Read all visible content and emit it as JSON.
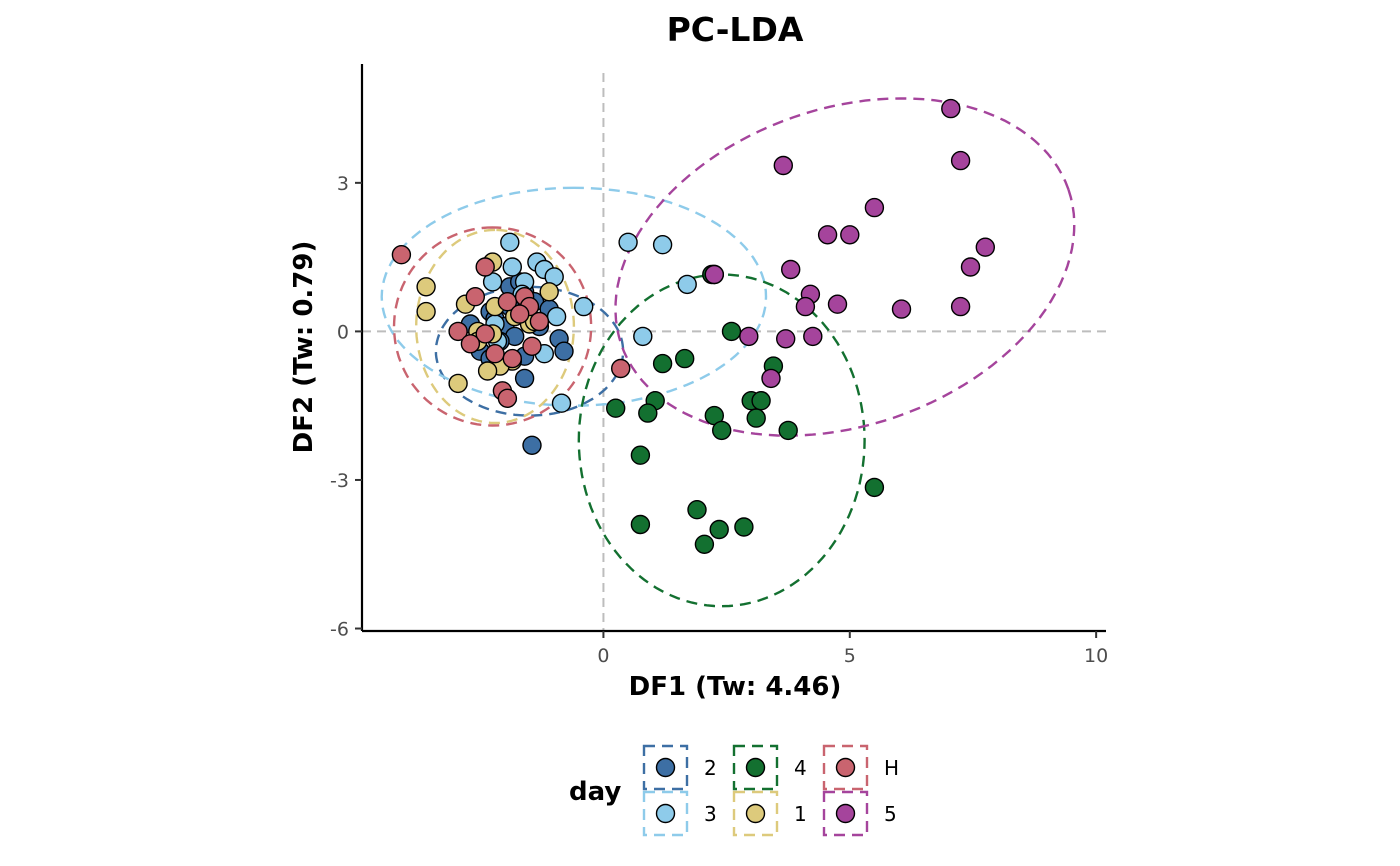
{
  "chart_data": {
    "type": "scatter",
    "title": "PC-LDA",
    "xlabel": "DF1 (Tw: 4.46)",
    "ylabel": "DF2 (Tw: 0.79)",
    "xlim": [
      -4.9,
      10.2
    ],
    "ylim": [
      -6.05,
      5.4
    ],
    "xticks": [
      0,
      5,
      10
    ],
    "xtick_labels": [
      "0",
      "5",
      "10"
    ],
    "yticks": [
      -6,
      -3,
      0,
      3
    ],
    "ytick_labels": [
      "-6",
      "-3",
      "0",
      "3"
    ],
    "reference_lines": {
      "x": 0,
      "y": 0,
      "style": "dashed",
      "color": "#bdbdbd"
    },
    "grid": false,
    "legend": {
      "title": "day",
      "position": "bottom"
    },
    "series": [
      {
        "name": "2",
        "color": "#3d6fa4",
        "ellipse": {
          "cx": -1.5,
          "cy": -0.4,
          "rx": 1.3,
          "ry": 1.9,
          "angle": 90
        },
        "points": [
          [
            -1.9,
            0.9
          ],
          [
            -1.6,
            0.8
          ],
          [
            -1.4,
            0.6
          ],
          [
            -1.9,
            0.5
          ],
          [
            -2.3,
            0.4
          ],
          [
            -2.2,
            0.25
          ],
          [
            -2.7,
            0.15
          ],
          [
            -1.3,
            0.1
          ],
          [
            -2.0,
            0.1
          ],
          [
            -1.8,
            -0.1
          ],
          [
            -2.1,
            -0.2
          ],
          [
            -2.5,
            -0.4
          ],
          [
            -1.6,
            -0.5
          ],
          [
            -1.1,
            0.45
          ],
          [
            -0.9,
            -0.15
          ],
          [
            -0.8,
            -0.4
          ],
          [
            -1.6,
            -0.95
          ],
          [
            -1.45,
            -2.3
          ],
          [
            -1.7,
            1.0
          ],
          [
            -2.3,
            -0.55
          ]
        ]
      },
      {
        "name": "3",
        "color": "#8ecbea",
        "ellipse": {
          "cx": -0.6,
          "cy": 0.7,
          "rx": 2.2,
          "ry": 3.9,
          "angle": 90
        },
        "points": [
          [
            -1.9,
            1.8
          ],
          [
            -1.35,
            1.4
          ],
          [
            -1.2,
            1.25
          ],
          [
            -1.0,
            1.1
          ],
          [
            -1.85,
            1.3
          ],
          [
            -2.25,
            1.0
          ],
          [
            -1.6,
            1.0
          ],
          [
            -1.65,
            0.75
          ],
          [
            -0.4,
            0.5
          ],
          [
            -0.95,
            0.3
          ],
          [
            -2.15,
            -0.2
          ],
          [
            -1.2,
            -0.45
          ],
          [
            -0.85,
            -1.45
          ],
          [
            0.5,
            1.8
          ],
          [
            1.2,
            1.75
          ],
          [
            1.7,
            0.95
          ],
          [
            0.8,
            -0.1
          ],
          [
            -2.2,
            0.15
          ]
        ]
      },
      {
        "name": "4",
        "color": "#137030",
        "ellipse": {
          "cx": 2.4,
          "cy": -2.2,
          "rx": 3.35,
          "ry": 2.9,
          "angle": 90
        },
        "points": [
          [
            2.6,
            0.0
          ],
          [
            1.65,
            -0.55
          ],
          [
            1.2,
            -0.65
          ],
          [
            3.45,
            -0.7
          ],
          [
            1.05,
            -1.4
          ],
          [
            0.9,
            -1.65
          ],
          [
            0.25,
            -1.55
          ],
          [
            2.25,
            -1.7
          ],
          [
            2.4,
            -2.0
          ],
          [
            3.0,
            -1.4
          ],
          [
            3.2,
            -1.4
          ],
          [
            3.1,
            -1.75
          ],
          [
            3.75,
            -2.0
          ],
          [
            0.75,
            -2.5
          ],
          [
            1.9,
            -3.6
          ],
          [
            0.75,
            -3.9
          ],
          [
            2.35,
            -4.0
          ],
          [
            2.85,
            -3.95
          ],
          [
            2.05,
            -4.3
          ],
          [
            5.5,
            -3.15
          ],
          [
            2.2,
            1.15
          ]
        ]
      },
      {
        "name": "1",
        "color": "#ddca7c",
        "ellipse": {
          "cx": -2.2,
          "cy": 0.1,
          "rx": 1.95,
          "ry": 1.6,
          "angle": 90
        },
        "points": [
          [
            -3.6,
            0.9
          ],
          [
            -3.6,
            0.4
          ],
          [
            -2.8,
            0.55
          ],
          [
            -2.25,
            1.4
          ],
          [
            -1.1,
            0.8
          ],
          [
            -2.2,
            0.5
          ],
          [
            -1.8,
            0.3
          ],
          [
            -1.5,
            0.15
          ],
          [
            -2.55,
            0.0
          ],
          [
            -2.25,
            -0.05
          ],
          [
            -2.55,
            -0.2
          ],
          [
            -1.85,
            -0.6
          ],
          [
            -2.1,
            -0.7
          ],
          [
            -2.35,
            -0.8
          ],
          [
            -2.95,
            -1.05
          ],
          [
            -1.4,
            0.2
          ]
        ]
      },
      {
        "name": "H",
        "color": "#c9646f",
        "ellipse": {
          "cx": -2.25,
          "cy": 0.1,
          "rx": 2.0,
          "ry": 2.0,
          "angle": 90
        },
        "points": [
          [
            -4.1,
            1.55
          ],
          [
            -2.4,
            1.3
          ],
          [
            -2.6,
            0.7
          ],
          [
            -1.95,
            0.6
          ],
          [
            -1.6,
            0.7
          ],
          [
            -1.5,
            0.5
          ],
          [
            -1.7,
            0.35
          ],
          [
            -1.3,
            0.2
          ],
          [
            -2.4,
            -0.05
          ],
          [
            -2.95,
            0.0
          ],
          [
            -2.7,
            -0.25
          ],
          [
            -2.2,
            -0.45
          ],
          [
            -1.85,
            -0.55
          ],
          [
            -1.45,
            -0.3
          ],
          [
            -2.05,
            -1.2
          ],
          [
            -1.95,
            -1.35
          ],
          [
            0.35,
            -0.75
          ],
          [
            2.25,
            1.15
          ]
        ]
      },
      {
        "name": "5",
        "color": "#a5449c",
        "ellipse": {
          "cx": 4.9,
          "cy": 1.3,
          "rx": 4.8,
          "ry": 3.2,
          "angle": 19
        },
        "points": [
          [
            7.05,
            4.5
          ],
          [
            7.25,
            3.45
          ],
          [
            3.65,
            3.35
          ],
          [
            5.5,
            2.5
          ],
          [
            4.55,
            1.95
          ],
          [
            5.0,
            1.95
          ],
          [
            7.75,
            1.7
          ],
          [
            3.8,
            1.25
          ],
          [
            7.45,
            1.3
          ],
          [
            4.2,
            0.75
          ],
          [
            4.1,
            0.5
          ],
          [
            4.75,
            0.55
          ],
          [
            7.25,
            0.5
          ],
          [
            6.05,
            0.45
          ],
          [
            2.95,
            -0.1
          ],
          [
            3.7,
            -0.15
          ],
          [
            4.25,
            -0.1
          ],
          [
            3.4,
            -0.95
          ],
          [
            2.25,
            1.15
          ]
        ]
      }
    ]
  }
}
